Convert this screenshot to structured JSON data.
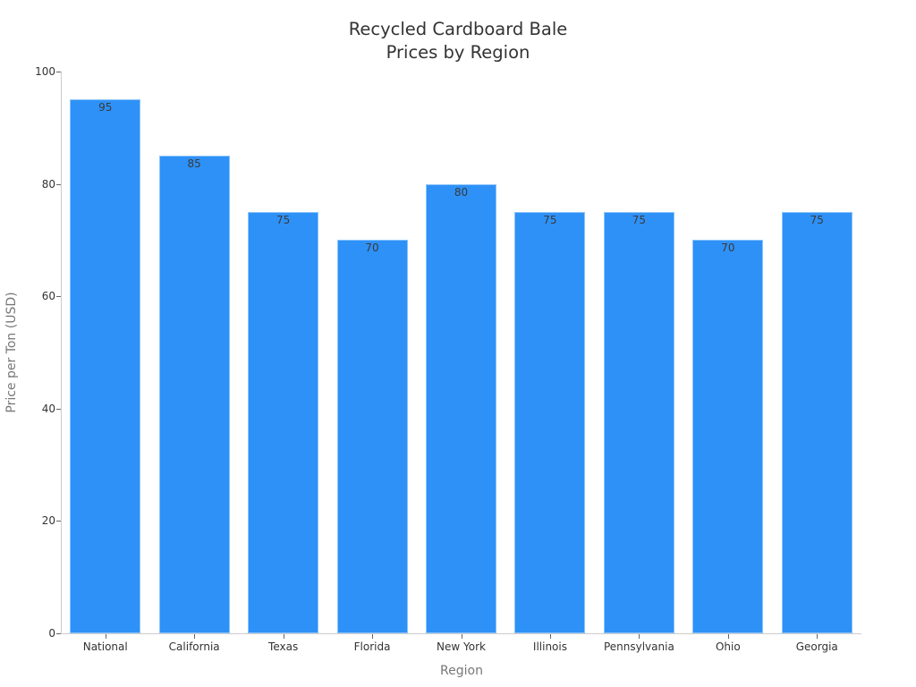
{
  "chart_data": {
    "type": "bar",
    "title": "Recycled Cardboard Bale Prices by Region",
    "title_lines": [
      "Recycled Cardboard Bale",
      "Prices by Region"
    ],
    "xlabel": "Region",
    "ylabel": "Price per Ton (USD)",
    "ylim": [
      0,
      100
    ],
    "yticks": [
      0,
      20,
      40,
      60,
      80,
      100
    ],
    "categories": [
      "National",
      "California",
      "Texas",
      "Florida",
      "New York",
      "Illinois",
      "Pennsylvania",
      "Ohio",
      "Georgia"
    ],
    "values": [
      95,
      85,
      75,
      70,
      80,
      75,
      75,
      70,
      75
    ],
    "data_labels": [
      "95",
      "85",
      "75",
      "70",
      "80",
      "75",
      "75",
      "70",
      "75"
    ],
    "bar_color": "#2e91f7",
    "grid": false,
    "legend": null
  }
}
